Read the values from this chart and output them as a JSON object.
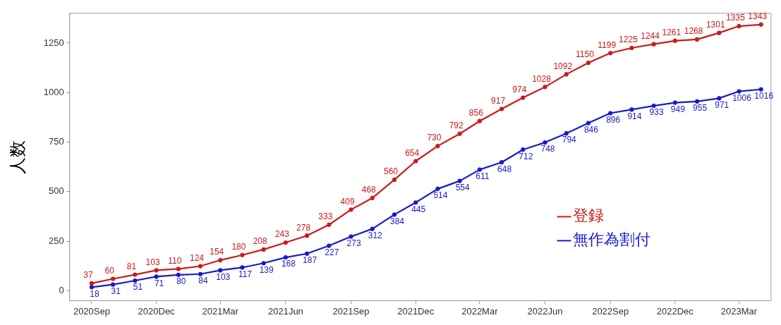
{
  "chart_data": {
    "type": "line",
    "ylabel": "人数",
    "x": [
      "2020-09",
      "2020-10",
      "2020-11",
      "2020-12",
      "2021-01",
      "2021-02",
      "2021-03",
      "2021-04",
      "2021-05",
      "2021-06",
      "2021-07",
      "2021-08",
      "2021-09",
      "2021-10",
      "2021-11",
      "2021-12",
      "2022-01",
      "2022-02",
      "2022-03",
      "2022-04",
      "2022-05",
      "2022-06",
      "2022-07",
      "2022-08",
      "2022-09",
      "2022-10",
      "2022-11",
      "2022-12",
      "2023-01",
      "2023-02",
      "2023-03",
      "2023-04"
    ],
    "series": [
      {
        "name": "登録",
        "color": "#cc1a1a",
        "values": [
          37,
          60,
          81,
          103,
          110,
          124,
          154,
          180,
          208,
          243,
          278,
          333,
          409,
          468,
          560,
          654,
          730,
          792,
          856,
          917,
          974,
          1028,
          1092,
          1150,
          1199,
          1225,
          1244,
          1261,
          1268,
          1301,
          1335,
          1343
        ]
      },
      {
        "name": "無作為割付",
        "color": "#1a1acc",
        "values": [
          18,
          31,
          51,
          71,
          80,
          84,
          103,
          117,
          139,
          168,
          187,
          227,
          273,
          312,
          384,
          445,
          514,
          554,
          611,
          648,
          712,
          748,
          794,
          846,
          896,
          914,
          933,
          949,
          955,
          971,
          1006,
          1016
        ]
      }
    ],
    "xlim": [
      "2020-08",
      "2023-04-15"
    ],
    "xticks": [
      {
        "value": "2020-09",
        "label": "2020Sep"
      },
      {
        "value": "2020-12",
        "label": "2020Dec"
      },
      {
        "value": "2021-03",
        "label": "2021Mar"
      },
      {
        "value": "2021-06",
        "label": "2021Jun"
      },
      {
        "value": "2021-09",
        "label": "2021Sep"
      },
      {
        "value": "2021-12",
        "label": "2021Dec"
      },
      {
        "value": "2022-03",
        "label": "2022Mar"
      },
      {
        "value": "2022-06",
        "label": "2022Jun"
      },
      {
        "value": "2022-09",
        "label": "2022Sep"
      },
      {
        "value": "2022-12",
        "label": "2022Dec"
      },
      {
        "value": "2023-03",
        "label": "2023Mar"
      }
    ],
    "ylim": [
      -50,
      1400
    ],
    "yticks": [
      0,
      250,
      500,
      750,
      1000,
      1250
    ],
    "grid": false,
    "legend": "bottom right",
    "marker": "circle",
    "line_style": "solid",
    "data_labels": true
  }
}
